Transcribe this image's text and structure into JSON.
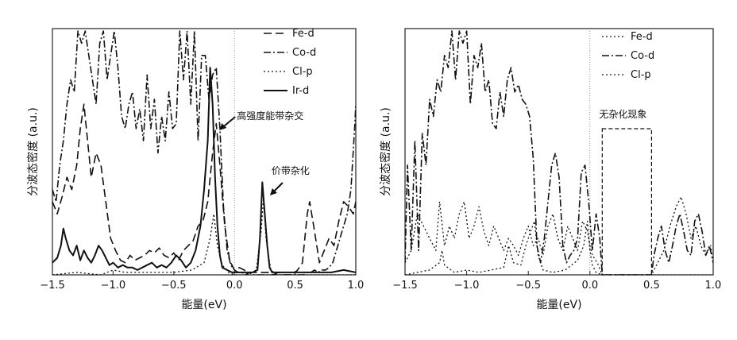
{
  "chart_data": [
    {
      "type": "line",
      "xlabel": "能量(eV)",
      "ylabel": "分波态密度 (a.u.)",
      "xlim": [
        -1.5,
        1.0
      ],
      "xticks": [
        "-1.5",
        "-1.0",
        "-0.5",
        "0.0",
        "0.5",
        "1.0"
      ],
      "y_ticks_shown": false,
      "fermi_level_line": 0.0,
      "legend_position": "top-right",
      "series": [
        {
          "name": "Fe-d",
          "style": "dashed",
          "x": [
            -1.5,
            -1.46,
            -1.42,
            -1.38,
            -1.34,
            -1.3,
            -1.27,
            -1.24,
            -1.21,
            -1.18,
            -1.14,
            -1.1,
            -1.06,
            -1.02,
            -0.98,
            -0.94,
            -0.9,
            -0.86,
            -0.82,
            -0.78,
            -0.74,
            -0.7,
            -0.66,
            -0.62,
            -0.58,
            -0.54,
            -0.5,
            -0.46,
            -0.42,
            -0.38,
            -0.34,
            -0.3,
            -0.26,
            -0.22,
            -0.18,
            -0.15,
            -0.12,
            -0.08,
            -0.04,
            0.0,
            0.04,
            0.08,
            0.12,
            0.16,
            0.2,
            0.24,
            0.28,
            0.32,
            0.36,
            0.4,
            0.44,
            0.48,
            0.52,
            0.56,
            0.6,
            0.62,
            0.66,
            0.7,
            0.74,
            0.78,
            0.82,
            0.86,
            0.9,
            0.94,
            0.98,
            1.0
          ],
          "y": [
            0.3,
            0.25,
            0.32,
            0.4,
            0.35,
            0.45,
            0.6,
            0.7,
            0.55,
            0.4,
            0.5,
            0.45,
            0.3,
            0.15,
            0.1,
            0.06,
            0.05,
            0.08,
            0.06,
            0.07,
            0.08,
            0.1,
            0.09,
            0.11,
            0.08,
            0.07,
            0.09,
            0.06,
            0.1,
            0.12,
            0.14,
            0.2,
            0.22,
            0.3,
            0.5,
            0.62,
            0.45,
            0.2,
            0.06,
            0.02,
            0.03,
            0.02,
            0.01,
            0.01,
            0.01,
            0.01,
            0.01,
            0.0,
            0.01,
            0.0,
            0.0,
            0.0,
            0.02,
            0.05,
            0.25,
            0.3,
            0.18,
            0.05,
            0.1,
            0.15,
            0.12,
            0.22,
            0.3,
            0.28,
            0.25,
            0.3
          ]
        },
        {
          "name": "Co-d",
          "style": "dash-dot",
          "x": [
            -1.5,
            -1.47,
            -1.44,
            -1.41,
            -1.38,
            -1.35,
            -1.32,
            -1.29,
            -1.26,
            -1.23,
            -1.2,
            -1.17,
            -1.14,
            -1.11,
            -1.08,
            -1.05,
            -1.02,
            -0.99,
            -0.96,
            -0.93,
            -0.9,
            -0.87,
            -0.84,
            -0.81,
            -0.78,
            -0.75,
            -0.72,
            -0.69,
            -0.66,
            -0.63,
            -0.6,
            -0.57,
            -0.54,
            -0.51,
            -0.48,
            -0.45,
            -0.42,
            -0.39,
            -0.36,
            -0.33,
            -0.3,
            -0.27,
            -0.24,
            -0.21,
            -0.18,
            -0.15,
            -0.12,
            -0.09,
            -0.06,
            -0.03,
            0.0,
            0.03,
            0.06,
            0.09,
            0.12,
            0.15,
            0.18,
            0.21,
            0.24,
            0.27,
            0.3,
            0.33,
            0.36,
            0.39,
            0.42,
            0.45,
            0.48,
            0.51,
            0.54,
            0.57,
            0.6,
            0.63,
            0.66,
            0.69,
            0.72,
            0.75,
            0.78,
            0.81,
            0.84,
            0.87,
            0.9,
            0.93,
            0.96,
            0.99,
            1.0
          ],
          "y": [
            0.35,
            0.3,
            0.45,
            0.55,
            0.7,
            0.8,
            0.75,
            1.0,
            0.95,
            1.0,
            0.9,
            0.8,
            0.7,
            0.95,
            1.0,
            0.8,
            0.9,
            1.0,
            0.85,
            0.65,
            0.6,
            0.7,
            0.75,
            0.6,
            0.68,
            0.55,
            0.82,
            0.6,
            0.72,
            0.5,
            0.65,
            0.55,
            0.75,
            0.6,
            0.62,
            1.0,
            0.8,
            1.0,
            0.7,
            1.0,
            0.55,
            0.9,
            0.9,
            0.72,
            0.82,
            0.85,
            0.6,
            0.28,
            0.1,
            0.04,
            0.02,
            0.01,
            0.01,
            0.0,
            0.01,
            0.0,
            0.0,
            0.0,
            0.0,
            0.0,
            0.0,
            0.0,
            0.0,
            0.0,
            0.0,
            0.0,
            0.0,
            0.0,
            0.0,
            0.0,
            0.01,
            0.01,
            0.02,
            0.01,
            0.02,
            0.02,
            0.03,
            0.05,
            0.1,
            0.15,
            0.2,
            0.25,
            0.35,
            0.6,
            0.7
          ]
        },
        {
          "name": "Cl-p",
          "style": "dotted",
          "x": [
            -1.5,
            -1.3,
            -1.1,
            -1.0,
            -0.9,
            -0.7,
            -0.5,
            -0.35,
            -0.25,
            -0.2,
            -0.17,
            -0.14,
            -0.1,
            -0.05,
            0.0,
            0.1,
            0.18,
            0.22,
            0.24,
            0.26,
            0.3,
            0.35,
            0.5,
            0.7,
            0.9,
            1.0
          ],
          "y": [
            0.0,
            0.01,
            0.0,
            0.02,
            0.01,
            0.01,
            0.01,
            0.02,
            0.05,
            0.15,
            0.25,
            0.12,
            0.04,
            0.01,
            0.0,
            0.0,
            0.02,
            0.18,
            0.32,
            0.15,
            0.02,
            0.0,
            0.0,
            0.0,
            0.0,
            0.0
          ]
        },
        {
          "name": "Ir-d",
          "style": "solid",
          "x": [
            -1.5,
            -1.46,
            -1.43,
            -1.41,
            -1.39,
            -1.36,
            -1.33,
            -1.3,
            -1.27,
            -1.24,
            -1.21,
            -1.18,
            -1.15,
            -1.12,
            -1.09,
            -1.06,
            -1.03,
            -1.0,
            -0.96,
            -0.92,
            -0.88,
            -0.84,
            -0.8,
            -0.76,
            -0.72,
            -0.68,
            -0.64,
            -0.6,
            -0.56,
            -0.52,
            -0.48,
            -0.44,
            -0.4,
            -0.36,
            -0.32,
            -0.28,
            -0.25,
            -0.22,
            -0.2,
            -0.18,
            -0.16,
            -0.14,
            -0.12,
            -0.1,
            -0.06,
            -0.02,
            0.0,
            0.05,
            0.1,
            0.15,
            0.19,
            0.21,
            0.23,
            0.25,
            0.27,
            0.29,
            0.31,
            0.35,
            0.4,
            0.5,
            0.6,
            0.7,
            0.8,
            0.9,
            1.0
          ],
          "y": [
            0.05,
            0.07,
            0.12,
            0.19,
            0.15,
            0.1,
            0.08,
            0.12,
            0.06,
            0.1,
            0.07,
            0.05,
            0.08,
            0.12,
            0.1,
            0.07,
            0.04,
            0.05,
            0.03,
            0.04,
            0.03,
            0.03,
            0.02,
            0.03,
            0.04,
            0.05,
            0.03,
            0.04,
            0.03,
            0.05,
            0.08,
            0.06,
            0.03,
            0.05,
            0.1,
            0.2,
            0.35,
            0.55,
            0.85,
            0.7,
            0.4,
            0.2,
            0.08,
            0.03,
            0.02,
            0.01,
            0.01,
            0.01,
            0.01,
            0.01,
            0.02,
            0.15,
            0.38,
            0.25,
            0.12,
            0.03,
            0.01,
            0.01,
            0.01,
            0.01,
            0.01,
            0.01,
            0.01,
            0.02,
            0.01
          ]
        }
      ],
      "annotations": [
        {
          "text": "高强度能带杂交",
          "points_to_x": -0.15
        },
        {
          "text": "价带杂化",
          "points_to_x": 0.24
        }
      ]
    },
    {
      "type": "line",
      "xlabel": "能量(eV)",
      "ylabel": "分波态密度 (a.u.)",
      "xlim": [
        -1.5,
        1.0
      ],
      "xticks": [
        "-1.5",
        "-1.0",
        "-0.5",
        "0.0",
        "0.5",
        "1.0"
      ],
      "y_ticks_shown": false,
      "fermi_level_line": 0.0,
      "legend_position": "top-right",
      "series": [
        {
          "name": "Fe-d",
          "style": "dotted",
          "x": [
            -1.5,
            -1.45,
            -1.4,
            -1.35,
            -1.3,
            -1.25,
            -1.22,
            -1.18,
            -1.14,
            -1.1,
            -1.06,
            -1.02,
            -0.98,
            -0.94,
            -0.9,
            -0.86,
            -0.82,
            -0.78,
            -0.74,
            -0.7,
            -0.66,
            -0.62,
            -0.58,
            -0.54,
            -0.5,
            -0.46,
            -0.42,
            -0.38,
            -0.34,
            -0.3,
            -0.26,
            -0.22,
            -0.18,
            -0.14,
            -0.1,
            -0.06,
            -0.02,
            0.0,
            0.02,
            0.06,
            0.1,
            0.5,
            0.55,
            0.6,
            0.65,
            0.7,
            0.74,
            0.78,
            0.82,
            0.86,
            0.9,
            0.94,
            0.98,
            1.0
          ],
          "y": [
            0.05,
            0.1,
            0.25,
            0.2,
            0.15,
            0.1,
            0.3,
            0.12,
            0.2,
            0.15,
            0.25,
            0.3,
            0.15,
            0.2,
            0.28,
            0.18,
            0.12,
            0.2,
            0.15,
            0.1,
            0.15,
            0.12,
            0.08,
            0.15,
            0.2,
            0.12,
            0.15,
            0.08,
            0.2,
            0.25,
            0.15,
            0.1,
            0.2,
            0.15,
            0.1,
            0.22,
            0.18,
            0.12,
            0.08,
            0.05,
            0.0,
            0.0,
            0.05,
            0.1,
            0.2,
            0.28,
            0.32,
            0.25,
            0.15,
            0.2,
            0.12,
            0.08,
            0.12,
            0.05
          ]
        },
        {
          "name": "Co-d",
          "style": "dash-dot",
          "x": [
            -1.5,
            -1.48,
            -1.45,
            -1.42,
            -1.39,
            -1.36,
            -1.33,
            -1.3,
            -1.27,
            -1.24,
            -1.21,
            -1.18,
            -1.15,
            -1.12,
            -1.09,
            -1.06,
            -1.03,
            -1.0,
            -0.97,
            -0.94,
            -0.91,
            -0.88,
            -0.85,
            -0.82,
            -0.79,
            -0.76,
            -0.73,
            -0.7,
            -0.67,
            -0.64,
            -0.61,
            -0.58,
            -0.55,
            -0.52,
            -0.49,
            -0.46,
            -0.43,
            -0.4,
            -0.37,
            -0.34,
            -0.31,
            -0.28,
            -0.25,
            -0.22,
            -0.19,
            -0.16,
            -0.13,
            -0.1,
            -0.07,
            -0.04,
            -0.01,
            0.02,
            0.05,
            0.08,
            0.1,
            0.5,
            0.52,
            0.55,
            0.58,
            0.61,
            0.64,
            0.67,
            0.7,
            0.73,
            0.76,
            0.79,
            0.82,
            0.85,
            0.88,
            0.91,
            0.94,
            0.97,
            1.0
          ],
          "y": [
            0.05,
            0.45,
            0.1,
            0.55,
            0.1,
            0.58,
            0.45,
            0.72,
            0.65,
            0.8,
            0.75,
            0.9,
            0.85,
            1.0,
            0.8,
            1.0,
            0.95,
            1.0,
            0.7,
            0.9,
            0.85,
            0.95,
            0.75,
            0.8,
            0.62,
            0.6,
            0.75,
            0.65,
            0.8,
            0.85,
            0.75,
            0.78,
            0.72,
            0.7,
            0.65,
            0.48,
            0.12,
            0.05,
            0.15,
            0.3,
            0.45,
            0.5,
            0.4,
            0.12,
            0.05,
            0.08,
            0.1,
            0.15,
            0.42,
            0.45,
            0.3,
            0.1,
            0.25,
            0.15,
            0.0,
            0.0,
            0.08,
            0.15,
            0.2,
            0.1,
            0.05,
            0.12,
            0.2,
            0.25,
            0.18,
            0.1,
            0.08,
            0.22,
            0.25,
            0.18,
            0.08,
            0.12,
            0.05
          ]
        },
        {
          "name": "Cl-p",
          "style": "dotted",
          "x": [
            -1.5,
            -1.4,
            -1.3,
            -1.22,
            -1.2,
            -1.18,
            -1.1,
            -1.0,
            -0.9,
            -0.8,
            -0.7,
            -0.66,
            -0.62,
            -0.56,
            -0.52,
            -0.48,
            -0.45,
            -0.42,
            -0.38,
            -0.3,
            -0.2,
            -0.1,
            -0.05,
            -0.02,
            0.0,
            0.02,
            0.05,
            0.1,
            0.3,
            0.5,
            0.7,
            0.9,
            1.0
          ],
          "y": [
            0.0,
            0.01,
            0.02,
            0.05,
            0.1,
            0.04,
            0.01,
            0.02,
            0.01,
            0.02,
            0.03,
            0.12,
            0.05,
            0.04,
            0.12,
            0.18,
            0.22,
            0.08,
            0.02,
            0.01,
            0.02,
            0.06,
            0.12,
            0.22,
            0.1,
            0.04,
            0.01,
            0.0,
            0.0,
            0.0,
            0.0,
            0.0,
            0.0
          ]
        }
      ],
      "annotations": [
        {
          "text": "无杂化现象",
          "box_x_range": [
            0.1,
            0.5
          ]
        }
      ]
    }
  ]
}
